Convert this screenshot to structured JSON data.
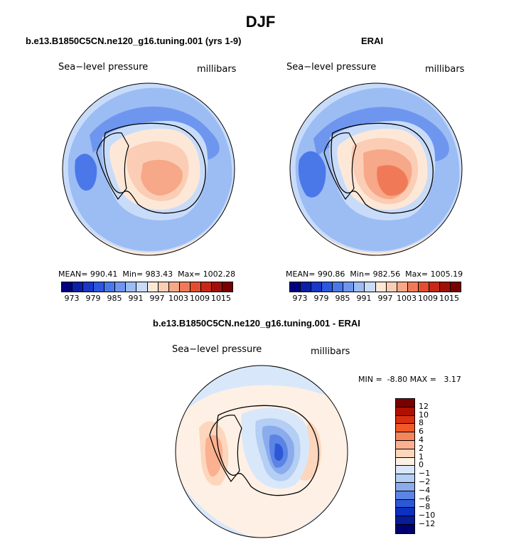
{
  "figure": {
    "title": "DJF",
    "field_label": "Sea−level pressure",
    "units_label": "millibars"
  },
  "panels": {
    "model": {
      "title": "b.e13.B1850C5CN.ne120_g16.tuning.001 (yrs 1-9)",
      "mean_label": "MEAN=",
      "mean": "990.41",
      "min_label": "Min=",
      "min": "983.43",
      "max_label": "Max=",
      "max": "1002.28"
    },
    "obs": {
      "title": "ERAI",
      "mean_label": "MEAN=",
      "mean": "990.86",
      "min_label": "Min=",
      "min": "982.56",
      "max_label": "Max=",
      "max": "1005.19"
    },
    "diff": {
      "title": "b.e13.B1850C5CN.ne120_g16.tuning.001 - ERAI",
      "min_label": "MIN =",
      "min": "-8.80",
      "max_label": "MAX =",
      "max": "3.17"
    }
  },
  "chart_data": [
    {
      "type": "heatmap",
      "projection": "south-polar-stereographic",
      "title": "b.e13.B1850C5CN.ne120_g16.tuning.001 (yrs 1-9)",
      "variable": "Sea-level pressure",
      "units": "millibars",
      "stats": {
        "mean": 990.41,
        "min": 983.43,
        "max": 1002.28
      },
      "colorbar_levels": [
        973,
        976,
        979,
        982,
        985,
        988,
        991,
        994,
        997,
        1000,
        1003,
        1006,
        1009,
        1012,
        1015
      ],
      "colorbar_tick_labels": [
        "973",
        "979",
        "985",
        "991",
        "997",
        "1003",
        "1009",
        "1015"
      ]
    },
    {
      "type": "heatmap",
      "projection": "south-polar-stereographic",
      "title": "ERAI",
      "variable": "Sea-level pressure",
      "units": "millibars",
      "stats": {
        "mean": 990.86,
        "min": 982.56,
        "max": 1005.19
      },
      "colorbar_levels": [
        973,
        976,
        979,
        982,
        985,
        988,
        991,
        994,
        997,
        1000,
        1003,
        1006,
        1009,
        1012,
        1015
      ],
      "colorbar_tick_labels": [
        "973",
        "979",
        "985",
        "991",
        "997",
        "1003",
        "1009",
        "1015"
      ]
    },
    {
      "type": "heatmap",
      "projection": "south-polar-stereographic",
      "title": "b.e13.B1850C5CN.ne120_g16.tuning.001 - ERAI",
      "variable": "Sea-level pressure",
      "units": "millibars",
      "stats": {
        "min": -8.8,
        "max": 3.17
      },
      "colorbar_levels": [
        12,
        10,
        8,
        6,
        4,
        2,
        1,
        0,
        -1,
        -2,
        -4,
        -6,
        -8,
        -10,
        -12
      ],
      "colorbar_tick_labels": [
        "12",
        "10",
        "8",
        "6",
        "4",
        "2",
        "1",
        "0",
        "−1",
        "−2",
        "−4",
        "−6",
        "−8",
        "−10",
        "−12"
      ]
    }
  ],
  "colors": {
    "abs_scale": [
      "#000080",
      "#0a20a8",
      "#1838c8",
      "#2c58e0",
      "#4a78e8",
      "#6e96ee",
      "#9cbcf4",
      "#c8dcfa",
      "#fde8d8",
      "#fbcdb4",
      "#f6a888",
      "#f07a58",
      "#e44e30",
      "#c82818",
      "#a01008",
      "#780000"
    ],
    "diff_scale": [
      "#7a0000",
      "#b01000",
      "#d83010",
      "#f05a28",
      "#f8845c",
      "#fbb090",
      "#fdd6bc",
      "#fef0e4",
      "#d8e8fa",
      "#b4cef4",
      "#8aacec",
      "#5c84e4",
      "#2c58d8",
      "#0c30c0",
      "#061c98",
      "#000070"
    ]
  }
}
